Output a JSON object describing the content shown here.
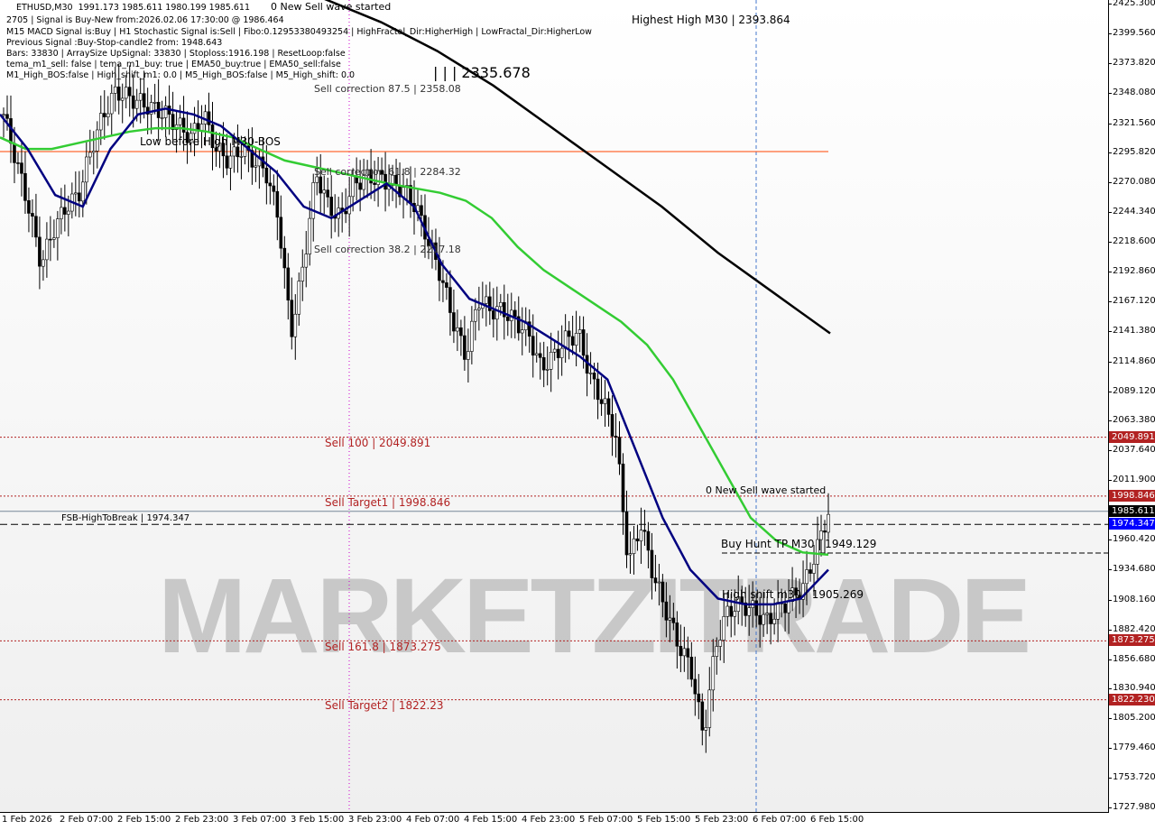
{
  "chart_data": {
    "type": "candlestick",
    "symbol": "ETHUSD,M30",
    "ohlc_header": "1991.173 1985.611 1980.199 1985.611",
    "ylim": [
      1727.98,
      2425.3
    ],
    "y_ticks": [
      "2425.300",
      "2399.560",
      "2373.820",
      "2348.080",
      "2321.560",
      "2295.820",
      "2270.080",
      "2244.340",
      "2218.600",
      "2192.860",
      "2167.120",
      "2141.380",
      "2114.860",
      "2089.120",
      "2063.380",
      "2037.640",
      "2011.900",
      "1960.420",
      "1934.680",
      "1908.160",
      "1882.420",
      "1856.680",
      "1830.940",
      "1805.200",
      "1779.460",
      "1753.720",
      "1727.980"
    ],
    "x_ticks": [
      "1 Feb 2026",
      "2 Feb 07:00",
      "2 Feb 15:00",
      "2 Feb 23:00",
      "3 Feb 07:00",
      "3 Feb 15:00",
      "3 Feb 23:00",
      "4 Feb 07:00",
      "4 Feb 15:00",
      "4 Feb 23:00",
      "5 Feb 07:00",
      "5 Feb 15:00",
      "5 Feb 23:00",
      "6 Feb 07:00",
      "6 Feb 15:00"
    ],
    "price_path_by_bar": [
      2330,
      2290,
      2250,
      2200,
      2230,
      2250,
      2260,
      2300,
      2330,
      2350,
      2345,
      2340,
      2335,
      2330,
      2320,
      2310,
      2330,
      2300,
      2290,
      2300,
      2290,
      2280,
      2240,
      2140,
      2200,
      2280,
      2250,
      2240,
      2270,
      2275,
      2275,
      2270,
      2265,
      2250,
      2220,
      2190,
      2150,
      2120,
      2170,
      2160,
      2160,
      2150,
      2140,
      2110,
      2120,
      2135,
      2140,
      2100,
      2080,
      2050,
      1940,
      1975,
      1930,
      1900,
      1870,
      1850,
      1790,
      1870,
      1900,
      1905,
      1900,
      1890,
      1900,
      1910,
      1920,
      1950,
      1985
    ],
    "ema_green": [
      2310,
      2300,
      2300,
      2305,
      2310,
      2315,
      2318,
      2318,
      2315,
      2310,
      2300,
      2290,
      2285,
      2280,
      2275,
      2270,
      2266,
      2262,
      2255,
      2240,
      2215,
      2195,
      2180,
      2165,
      2150,
      2130,
      2100,
      2060,
      2020,
      1980,
      1960,
      1950,
      1948
    ],
    "tema_navy": [
      2330,
      2300,
      2260,
      2250,
      2300,
      2330,
      2335,
      2330,
      2320,
      2300,
      2280,
      2250,
      2240,
      2255,
      2270,
      2250,
      2200,
      2170,
      2160,
      2150,
      2135,
      2120,
      2100,
      2040,
      1980,
      1935,
      1910,
      1905,
      1905,
      1910,
      1935
    ],
    "ma_black": [
      2430,
      2410,
      2385,
      2355,
      2320,
      2285,
      2250,
      2210,
      2175,
      2140
    ],
    "levels": [
      {
        "label": "Sell 100 | 2049.891",
        "value": 2049.891,
        "color": "#b22222"
      },
      {
        "label": "Sell Target1 | 1998.846",
        "value": 1998.846,
        "color": "#b22222"
      },
      {
        "label": "Sell 161.8 | 1873.275",
        "value": 1873.275,
        "color": "#b22222"
      },
      {
        "label": "Sell Target2 | 1822.23",
        "value": 1822.23,
        "color": "#b22222"
      },
      {
        "label": "FSB-HighToBreak | 1974.347",
        "value": 1974.347,
        "color": "#000000"
      }
    ],
    "price_badges": [
      {
        "text": "2049.891",
        "value": 2049.891,
        "color": "#b22222"
      },
      {
        "text": "1998.846",
        "value": 1998.846,
        "color": "#b22222"
      },
      {
        "text": "1985.611",
        "value": 1985.611,
        "color": "#000000"
      },
      {
        "text": "1974.347",
        "value": 1974.347,
        "color": "#0000ff"
      },
      {
        "text": "1873.275",
        "value": 1873.275,
        "color": "#b22222"
      },
      {
        "text": "1822.230",
        "value": 1822.23,
        "color": "#b22222"
      }
    ],
    "annotations": [
      {
        "text": "0 New Sell wave started",
        "value": 2007
      },
      {
        "text": "Buy Hunt TP M30 | 1949.129",
        "value": 1952
      },
      {
        "text": "High shift m30 | 1905.269",
        "value": 1900
      },
      {
        "text": "Sell correction 87.5 | 2358.08",
        "value": 2358.08
      },
      {
        "text": "Sell correction 61.8 | 2284.32",
        "value": 2284.32
      },
      {
        "text": "Sell correction 38.2 | 2217.18",
        "value": 2217.18
      },
      {
        "text": "Low before High  M30-BOS",
        "value": 2306
      },
      {
        "text": "Highest High  M30 | 2393.864",
        "value": 2396
      },
      {
        "text": "| | | 2335.678",
        "value": 2335.678
      },
      {
        "text": "0 New Sell wave started",
        "value": 2430
      }
    ]
  },
  "info_lines": [
    "2705 | Signal is Buy-New from:2026.02.06 17:30:00 @ 1986.464",
    "M15 MACD Signal is:Buy | H1 Stochastic Signal is:Sell | Fibo:0.12953380493254 | HighFractal_Dir:HigherHigh | LowFractal_Dir:HigherLow",
    "Previous Signal :Buy-Stop-candle2 from: 1948.643",
    "Bars: 33830 | ArraySize UpSignal: 33830 | Stoploss:1916.198 | ResetLoop:false",
    "tema_m1_sell: false | tema_m1_buy: true | EMA50_buy:true | EMA50_sell:false",
    "M1_High_BOS:false | High_shift_m1: 0.0 | M5_High_BOS:false | M5_High_shift: 0.0"
  ],
  "watermark": "MARKETZITRADE",
  "colors": {
    "bull": "#000000",
    "bear": "#000000",
    "ema": "#33cc33",
    "tema": "#000080",
    "ma": "#000000",
    "levels": "#b22222",
    "hline": "#ff4500"
  }
}
